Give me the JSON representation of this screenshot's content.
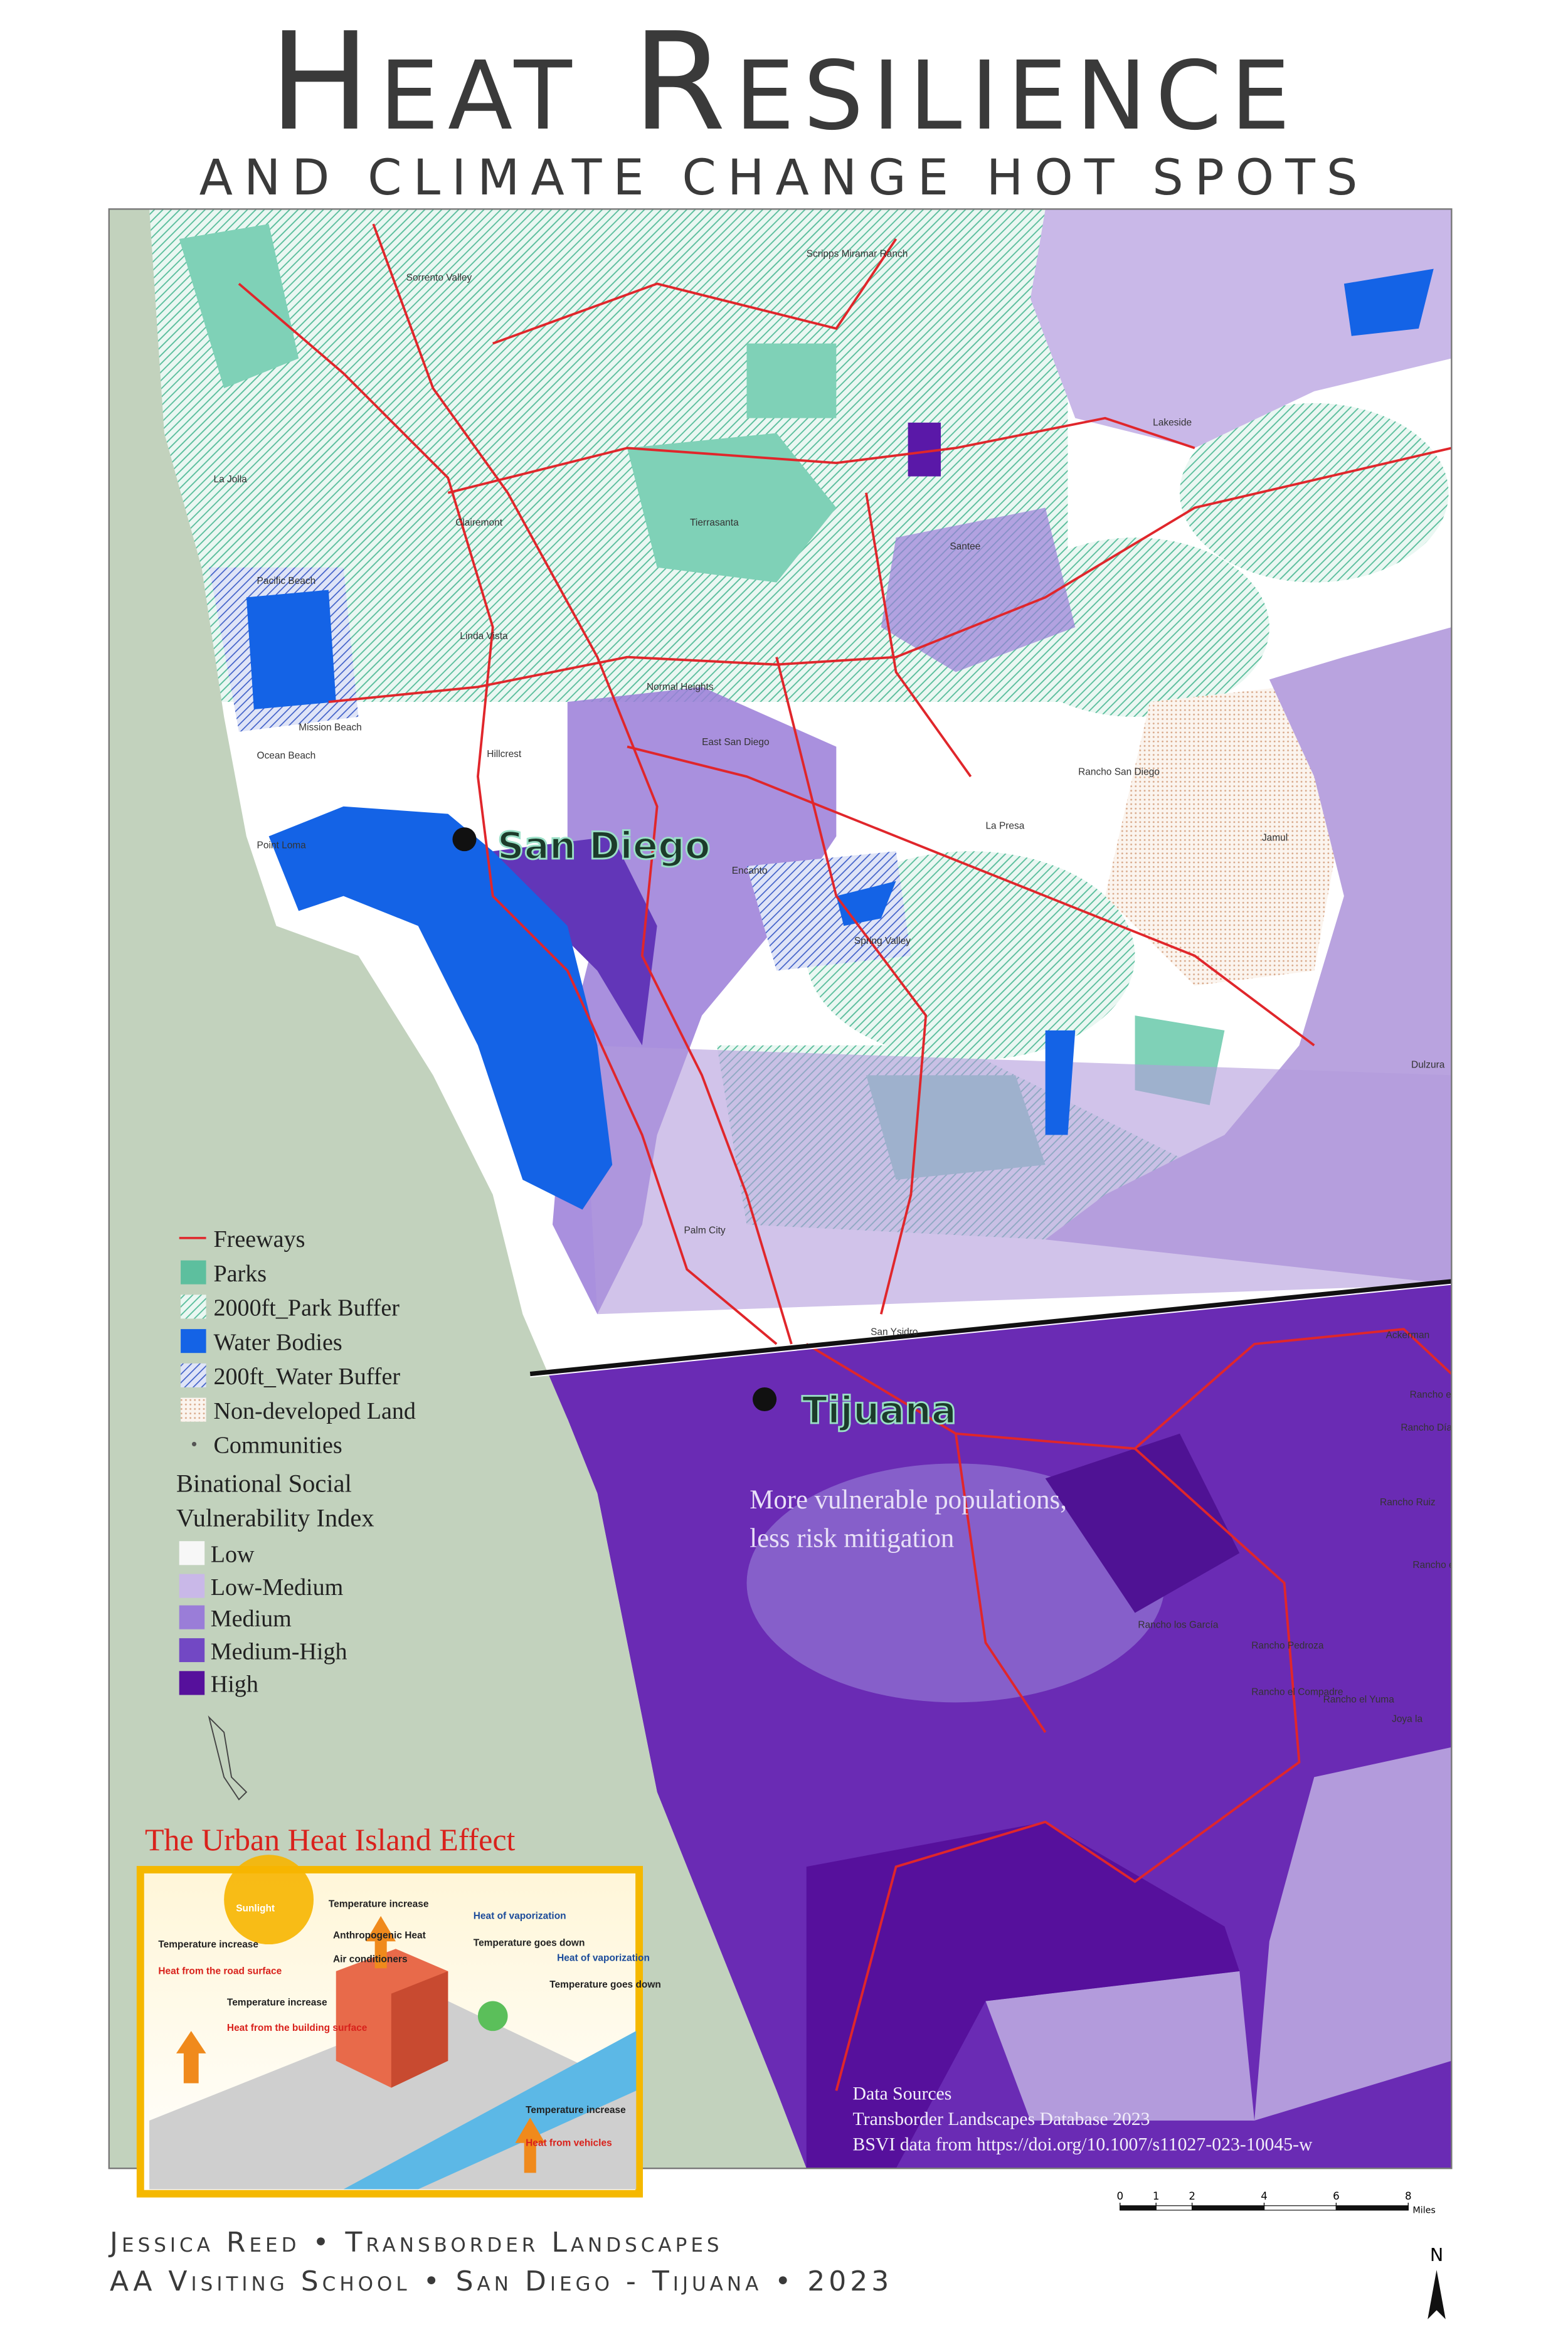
{
  "header": {
    "title": "Heat Resilience",
    "subtitle": "AND CLIMATE CHANGE HOT SPOTS"
  },
  "map": {
    "cities": [
      "San Diego",
      "Tijuana"
    ],
    "places": [
      "Sorrento Valley",
      "Scripps Miramar Ranch",
      "La Jolla",
      "Clairemont",
      "Tierrasanta",
      "Pacific Beach",
      "Linda Vista",
      "Normal Heights",
      "Mission Beach",
      "Ocean Beach",
      "Hillcrest",
      "East San Diego",
      "Point Loma",
      "Encanto",
      "Rancho San Diego",
      "La Presa",
      "Jamul",
      "Lakeside",
      "Santee",
      "Spring Valley",
      "Dulzura",
      "Palm City",
      "San Ysidro",
      "Ackerman",
      "Rancho el Refugio",
      "Rancho Díaz",
      "Rancho Ruiz",
      "Rancho el Rubio",
      "Rancho los García",
      "Rancho Pedroza",
      "Rancho el Compadre",
      "Rancho el Yuma",
      "Joya la"
    ],
    "annotation": [
      "More vulnerable populations,",
      "less risk mitigation"
    ],
    "sources": [
      "Data Sources",
      "Transborder Landscapes Database 2023",
      "BSVI data from https://doi.org/10.1007/s11027-023-10045-w"
    ],
    "north": "N",
    "scale_bar": {
      "ticks": [
        0,
        1,
        2,
        4,
        6,
        8
      ],
      "unit": "Miles"
    }
  },
  "legend": {
    "items": [
      {
        "name": "Freeways",
        "color": "#e0262b"
      },
      {
        "name": "Parks",
        "color": "#5dbf9e"
      },
      {
        "name": "2000ft_Park Buffer",
        "color": "#5dbf9e"
      },
      {
        "name": "Water Bodies",
        "color": "#1463e6"
      },
      {
        "name": "200ft_Water Buffer",
        "color": "#3f5fc8"
      },
      {
        "name": "Non-developed Land",
        "color": "#e3b99a"
      },
      {
        "name": "Communities",
        "color": "#555555"
      }
    ],
    "index_title": [
      "Binational Social",
      "Vulnerability Index"
    ],
    "classes": [
      {
        "name": "Low",
        "color": "#f7f7f7"
      },
      {
        "name": "Low-Medium",
        "color": "#c9b8e8"
      },
      {
        "name": "Medium",
        "color": "#9a7dd8"
      },
      {
        "name": "Medium-High",
        "color": "#7248c4"
      },
      {
        "name": "High",
        "color": "#56109c"
      }
    ]
  },
  "diagram": {
    "title": "The Urban Heat Island Effect",
    "labels": [
      "Sunlight",
      "Temperature increase",
      "Heat of vaporization",
      "Temperature goes down",
      "Heat of vaporization",
      "Temperature goes down",
      "Temperature increase",
      "Heat from the road surface",
      "Anthropogenic Heat",
      "Air conditioners",
      "Temperature increase",
      "Heat from the building surface",
      "Temperature increase",
      "Heat from vehicles"
    ]
  },
  "footer": {
    "lines": [
      "Jessica Reed • Transborder Landscapes",
      "AA Visiting School • San Diego - Tijuana • 2023"
    ]
  }
}
